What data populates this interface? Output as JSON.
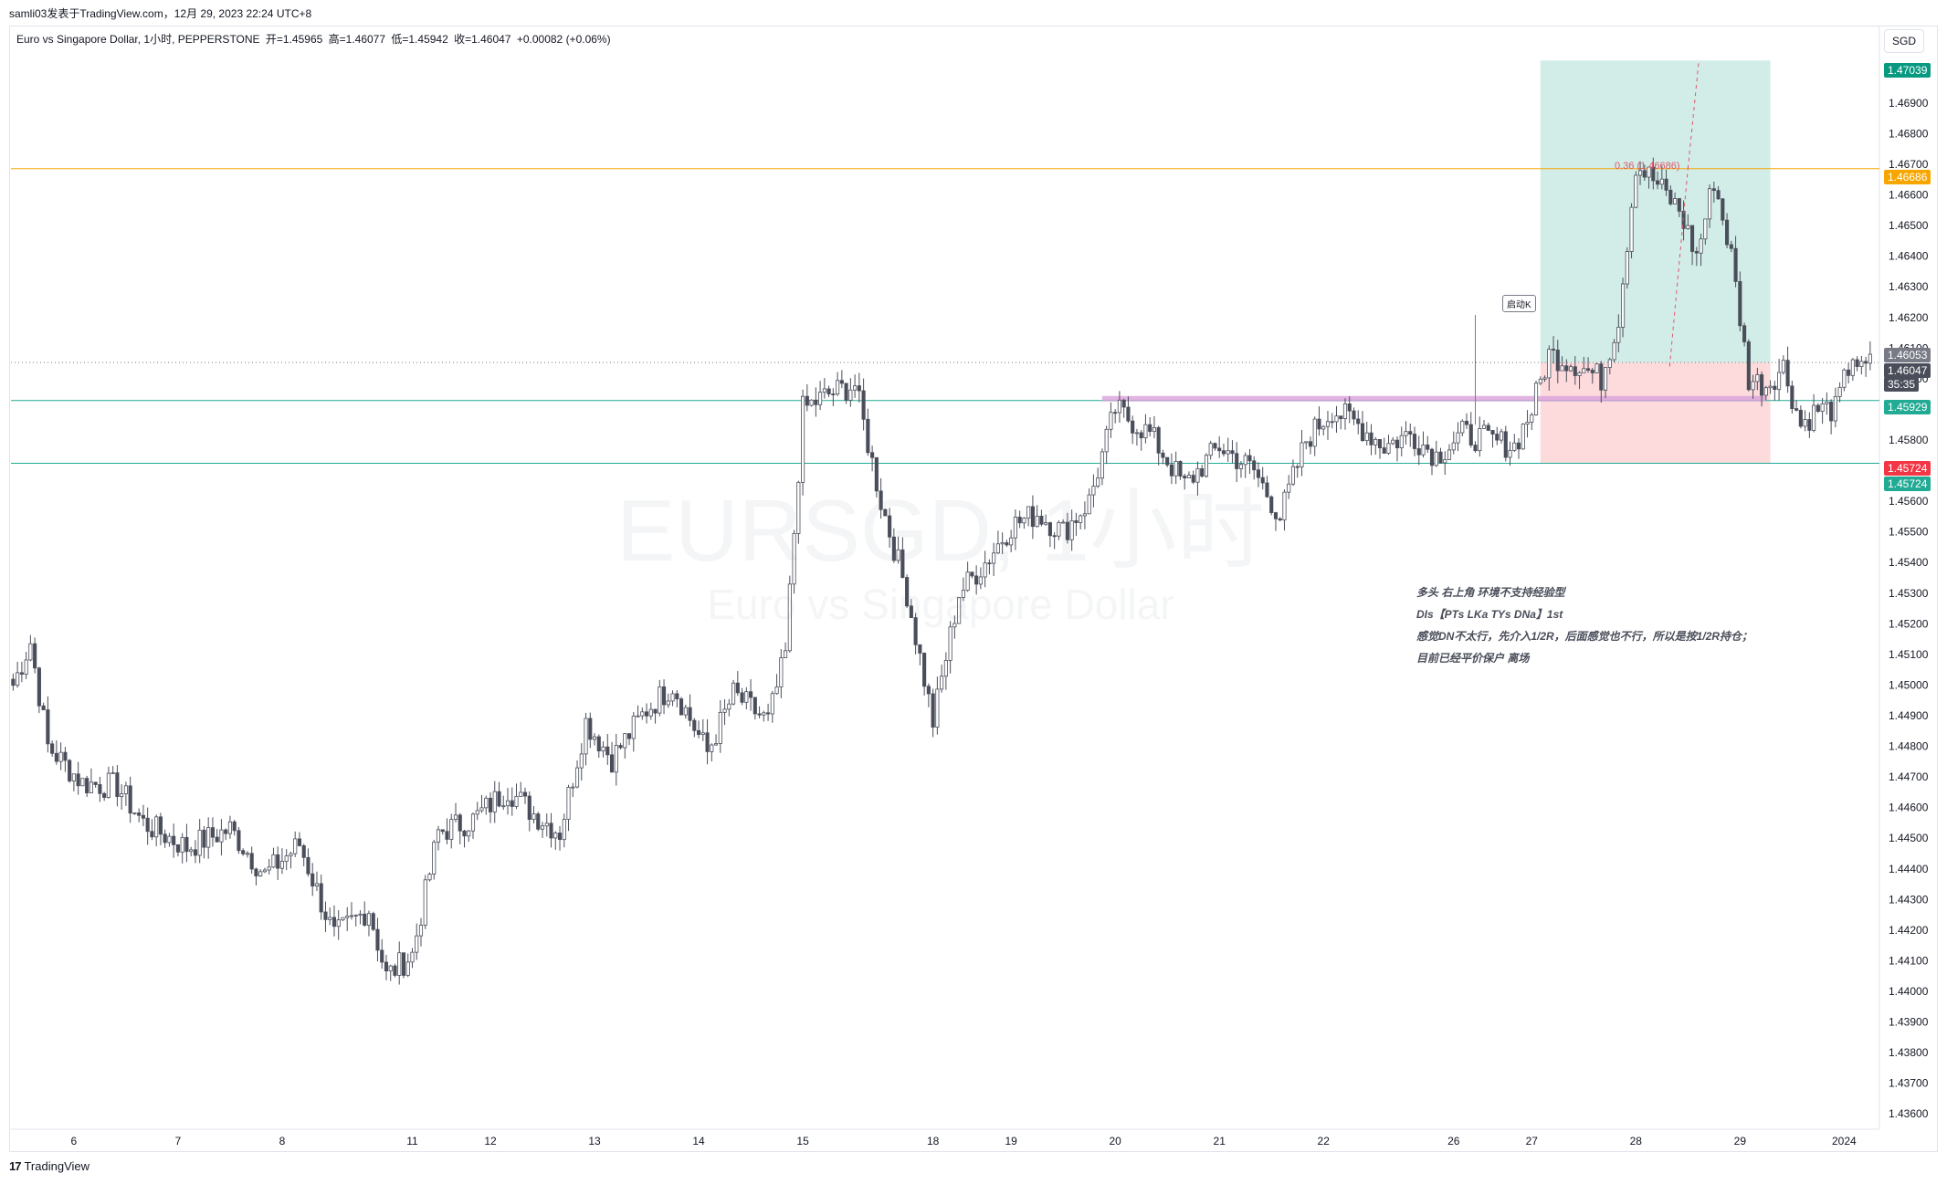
{
  "header": {
    "publish_line": "samli03发表于TradingView.com，12月 29, 2023 22:24 UTC+8",
    "symbol_desc": "Euro vs Singapore Dollar, 1小时, PEPPERSTONE",
    "open_label": "开=1.45965",
    "high_label": "高=1.46077",
    "low_label": "低=1.45942",
    "close_label": "收=1.46047",
    "change_label": "+0.00082 (+0.06%)"
  },
  "currency_button": "SGD",
  "watermark": {
    "symbol": "EURSGD, 1小时",
    "name": "Euro vs Singapore Dollar"
  },
  "annotations": {
    "launch_k": "启动K",
    "fib_label": "0.36 (1.46686)",
    "note_lines": [
      "多头 右上角 环境不支持经验型",
      "DIs【PTs LKa TYs DNa】1st",
      "感觉DN不太行，先介入1/2R，后面感觉也不行，所以是按1/2R持仓；",
      "目前已经平价保户 离场"
    ]
  },
  "price_tags": [
    {
      "text": "1.47039",
      "color": "#089981"
    },
    {
      "text": "1.46686",
      "color": "#f7a600"
    },
    {
      "text": "1.46053",
      "color": "#787b86"
    },
    {
      "text": "1.46047",
      "color": "#4a4e5a"
    },
    {
      "text": "35:35",
      "color": "#4a4e5a"
    },
    {
      "text": "1.45929",
      "color": "#22ab94"
    },
    {
      "text": "1.45724",
      "color": "#f23645"
    },
    {
      "text": "1.45724",
      "color": "#22ab94"
    }
  ],
  "footer": {
    "brand": "TradingView"
  },
  "chart_data": {
    "type": "candlestick",
    "title": "Euro vs Singapore Dollar, 1小时, PEPPERSTONE",
    "ylim": [
      1.4355,
      1.4715
    ],
    "y_ticks": [
      "1.47000",
      "1.46900",
      "1.46800",
      "1.46700",
      "1.46600",
      "1.46500",
      "1.46400",
      "1.46300",
      "1.46200",
      "1.46100",
      "1.46000",
      "1.45900",
      "1.45800",
      "1.45700",
      "1.45600",
      "1.45500",
      "1.45400",
      "1.45300",
      "1.45200",
      "1.45100",
      "1.45000",
      "1.44900",
      "1.44800",
      "1.44700",
      "1.44600",
      "1.44500",
      "1.44400",
      "1.44300",
      "1.44200",
      "1.44100",
      "1.44000",
      "1.43900",
      "1.43800",
      "1.43700",
      "1.43600"
    ],
    "x_ticks": [
      {
        "label": "6",
        "bar": 14
      },
      {
        "label": "7",
        "bar": 38
      },
      {
        "label": "8",
        "bar": 62
      },
      {
        "label": "11",
        "bar": 92
      },
      {
        "label": "12",
        "bar": 110
      },
      {
        "label": "13",
        "bar": 134
      },
      {
        "label": "14",
        "bar": 158
      },
      {
        "label": "15",
        "bar": 182
      },
      {
        "label": "18",
        "bar": 212
      },
      {
        "label": "19",
        "bar": 230
      },
      {
        "label": "20",
        "bar": 254
      },
      {
        "label": "21",
        "bar": 278
      },
      {
        "label": "22",
        "bar": 302
      },
      {
        "label": "26",
        "bar": 332
      },
      {
        "label": "27",
        "bar": 350
      },
      {
        "label": "28",
        "bar": 374
      },
      {
        "label": "29",
        "bar": 398
      },
      {
        "label": "2024",
        "bar": 422
      }
    ],
    "bar_count": 430,
    "horizontal_lines": [
      {
        "price": 1.46686,
        "color": "#f7a600"
      },
      {
        "price": 1.45929,
        "color": "#22ab94"
      },
      {
        "price": 1.45724,
        "color": "#22ab94"
      },
      {
        "price": 1.46053,
        "color": "#787b86",
        "style": "dotted"
      }
    ],
    "position": {
      "type": "long",
      "entry": 1.46053,
      "target": 1.47039,
      "stop": 1.45724,
      "start_bar": 352,
      "end_bar": 405
    },
    "zone_line": {
      "price": 1.45935,
      "start_bar": 251,
      "end_bar": 404,
      "color": "#dca2dc"
    },
    "anchors": [
      {
        "bar": 0,
        "price": 1.45
      },
      {
        "bar": 4,
        "price": 1.4514
      },
      {
        "bar": 8,
        "price": 1.448
      },
      {
        "bar": 16,
        "price": 1.4468
      },
      {
        "bar": 24,
        "price": 1.4467
      },
      {
        "bar": 30,
        "price": 1.4455
      },
      {
        "bar": 40,
        "price": 1.4447
      },
      {
        "bar": 50,
        "price": 1.4453
      },
      {
        "bar": 58,
        "price": 1.4438
      },
      {
        "bar": 66,
        "price": 1.4448
      },
      {
        "bar": 74,
        "price": 1.4418
      },
      {
        "bar": 82,
        "price": 1.4427
      },
      {
        "bar": 86,
        "price": 1.4405
      },
      {
        "bar": 92,
        "price": 1.4412
      },
      {
        "bar": 98,
        "price": 1.4452
      },
      {
        "bar": 106,
        "price": 1.4456
      },
      {
        "bar": 114,
        "price": 1.4466
      },
      {
        "bar": 120,
        "price": 1.4458
      },
      {
        "bar": 126,
        "price": 1.4452
      },
      {
        "bar": 132,
        "price": 1.4488
      },
      {
        "bar": 138,
        "price": 1.4476
      },
      {
        "bar": 146,
        "price": 1.4492
      },
      {
        "bar": 152,
        "price": 1.45
      },
      {
        "bar": 160,
        "price": 1.4478
      },
      {
        "bar": 166,
        "price": 1.4497
      },
      {
        "bar": 174,
        "price": 1.4488
      },
      {
        "bar": 178,
        "price": 1.451
      },
      {
        "bar": 182,
        "price": 1.459
      },
      {
        "bar": 188,
        "price": 1.4595
      },
      {
        "bar": 194,
        "price": 1.4598
      },
      {
        "bar": 200,
        "price": 1.456
      },
      {
        "bar": 206,
        "price": 1.453
      },
      {
        "bar": 212,
        "price": 1.4488
      },
      {
        "bar": 218,
        "price": 1.453
      },
      {
        "bar": 224,
        "price": 1.454
      },
      {
        "bar": 230,
        "price": 1.4552
      },
      {
        "bar": 236,
        "price": 1.4556
      },
      {
        "bar": 242,
        "price": 1.455
      },
      {
        "bar": 248,
        "price": 1.456
      },
      {
        "bar": 254,
        "price": 1.459
      },
      {
        "bar": 262,
        "price": 1.4582
      },
      {
        "bar": 270,
        "price": 1.4565
      },
      {
        "bar": 278,
        "price": 1.4578
      },
      {
        "bar": 286,
        "price": 1.457
      },
      {
        "bar": 292,
        "price": 1.4555
      },
      {
        "bar": 298,
        "price": 1.458
      },
      {
        "bar": 304,
        "price": 1.459
      },
      {
        "bar": 310,
        "price": 1.4585
      },
      {
        "bar": 316,
        "price": 1.4578
      },
      {
        "bar": 322,
        "price": 1.4582
      },
      {
        "bar": 328,
        "price": 1.4575
      },
      {
        "bar": 334,
        "price": 1.4582
      },
      {
        "bar": 340,
        "price": 1.458
      },
      {
        "bar": 346,
        "price": 1.4578
      },
      {
        "bar": 350,
        "price": 1.459
      },
      {
        "bar": 354,
        "price": 1.4608
      },
      {
        "bar": 360,
        "price": 1.4605
      },
      {
        "bar": 366,
        "price": 1.46
      },
      {
        "bar": 370,
        "price": 1.462
      },
      {
        "bar": 374,
        "price": 1.467
      },
      {
        "bar": 378,
        "price": 1.4665
      },
      {
        "bar": 384,
        "price": 1.4655
      },
      {
        "bar": 388,
        "price": 1.464
      },
      {
        "bar": 392,
        "price": 1.4665
      },
      {
        "bar": 396,
        "price": 1.464
      },
      {
        "bar": 400,
        "price": 1.46
      },
      {
        "bar": 404,
        "price": 1.4598
      },
      {
        "bar": 408,
        "price": 1.4604
      },
      {
        "bar": 412,
        "price": 1.4585
      },
      {
        "bar": 416,
        "price": 1.459
      },
      {
        "bar": 420,
        "price": 1.459
      },
      {
        "bar": 424,
        "price": 1.4608
      },
      {
        "bar": 426,
        "price": 1.4602
      },
      {
        "bar": 428,
        "price": 1.46047
      }
    ]
  }
}
